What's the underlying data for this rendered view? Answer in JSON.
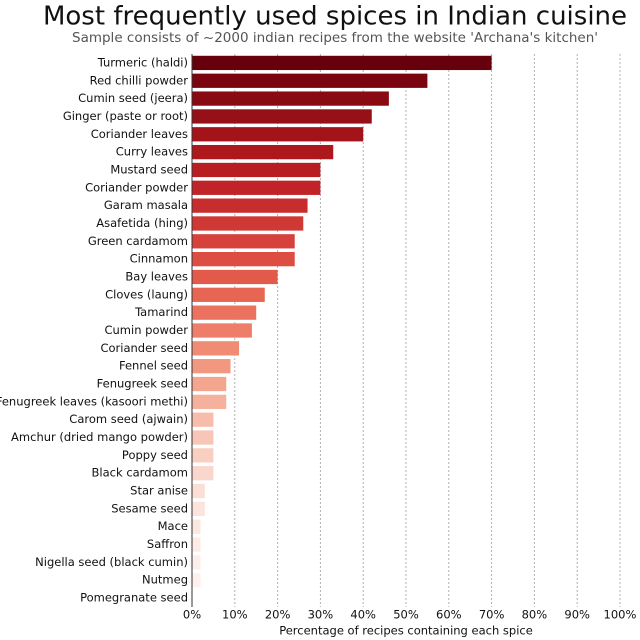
{
  "chart_data": {
    "type": "bar",
    "orientation": "horizontal",
    "title": "Most frequently used spices in Indian cuisine",
    "subtitle": "Sample consists of ~2000 indian recipes from the website 'Archana's kitchen'",
    "xlabel": "Percentage of recipes containing each spice",
    "categories": [
      "Turmeric (haldi)",
      "Red chilli powder",
      "Cumin seed (jeera)",
      "Ginger (paste or root)",
      "Coriander leaves",
      "Curry leaves",
      "Mustard seed",
      "Coriander powder",
      "Garam masala",
      "Asafetida (hing)",
      "Green cardamom",
      "Cinnamon",
      "Bay leaves",
      "Cloves (laung)",
      "Tamarind",
      "Cumin powder",
      "Coriander seed",
      "Fennel seed",
      "Fenugreek seed",
      "Fenugreek leaves (kasoori methi)",
      "Carom seed (ajwain)",
      "Amchur (dried mango powder)",
      "Poppy seed",
      "Black cardamom",
      "Star anise",
      "Sesame seed",
      "Mace",
      "Saffron",
      "Nigella seed (black cumin)",
      "Nutmeg",
      "Pomegranate seed"
    ],
    "values": [
      70,
      55,
      46,
      42,
      40,
      33,
      30,
      30,
      27,
      26,
      24,
      24,
      20,
      17,
      15,
      14,
      11,
      9,
      8,
      8,
      5,
      5,
      5,
      5,
      3,
      3,
      2,
      2,
      2,
      2,
      0
    ],
    "colors": [
      "#67000d",
      "#7a0510",
      "#8a0a14",
      "#961017",
      "#a3141a",
      "#ad181d",
      "#b81d21",
      "#c02428",
      "#c82d2e",
      "#cf3834",
      "#d6423b",
      "#dd4d41",
      "#e25a49",
      "#e66653",
      "#ea725e",
      "#ee7e69",
      "#f08b74",
      "#f29880",
      "#f4a58e",
      "#f5b19c",
      "#f7bcaa",
      "#f8c6b6",
      "#f9cfc2",
      "#fad7cd",
      "#fbded6",
      "#fce3dc",
      "#fce7e1",
      "#fdebe6",
      "#fdeee9",
      "#fef1ed",
      "#fef3f0"
    ],
    "xlim": [
      0,
      100
    ],
    "xticks": [
      {
        "value": 0,
        "label": "0%"
      },
      {
        "value": 10,
        "label": "10%"
      },
      {
        "value": 20,
        "label": "20%"
      },
      {
        "value": 30,
        "label": "30%"
      },
      {
        "value": 40,
        "label": "40%"
      },
      {
        "value": 50,
        "label": "50%"
      },
      {
        "value": 60,
        "label": "60%"
      },
      {
        "value": 70,
        "label": "70%"
      },
      {
        "value": 80,
        "label": "80%"
      },
      {
        "value": 90,
        "label": "90%"
      },
      {
        "value": 100,
        "label": "100%"
      }
    ],
    "grid": true
  }
}
